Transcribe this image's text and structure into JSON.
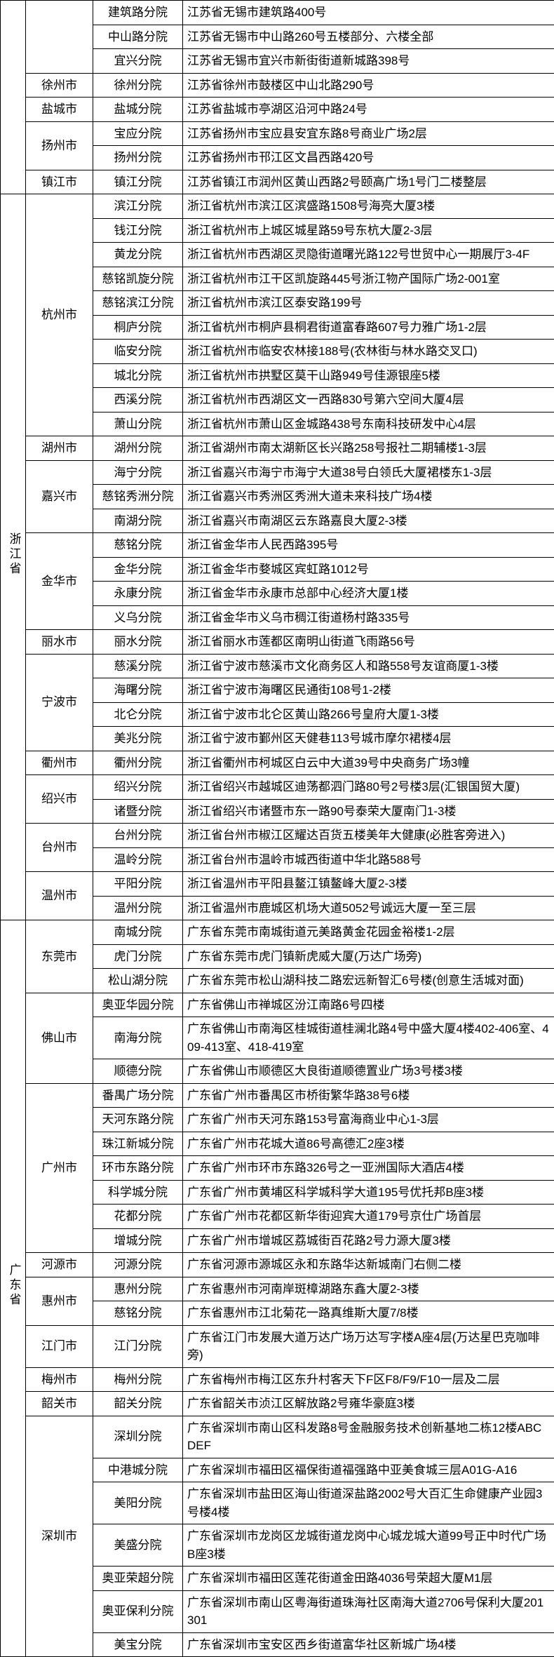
{
  "rows": [
    {
      "prov": "",
      "provSpan": 0,
      "city": "",
      "citySpan": 0,
      "branch": "建筑路分院",
      "addr": "江苏省无锡市建筑路400号"
    },
    {
      "prov": "",
      "provSpan": 0,
      "city": "",
      "citySpan": 0,
      "branch": "中山路分院",
      "addr": "江苏省无锡市中山路260号五楼部分、六楼全部"
    },
    {
      "prov": "",
      "provSpan": 0,
      "city": "",
      "citySpan": 0,
      "branch": "宜兴分院",
      "addr": "江苏省无锡市宜兴市新街街道新城路398号"
    },
    {
      "prov": "",
      "provSpan": 0,
      "city": "徐州市",
      "citySpan": 1,
      "branch": "徐州分院",
      "addr": "江苏省徐州市鼓楼区中山北路290号"
    },
    {
      "prov": "",
      "provSpan": 0,
      "city": "盐城市",
      "citySpan": 1,
      "branch": "盐城分院",
      "addr": "江苏省盐城市亭湖区沿河中路24号"
    },
    {
      "prov": "",
      "provSpan": 0,
      "city": "扬州市",
      "citySpan": 2,
      "branch": "宝应分院",
      "addr": "江苏省扬州市宝应县安宜东路8号商业广场2层"
    },
    {
      "prov": "",
      "provSpan": 0,
      "city": "",
      "citySpan": 0,
      "branch": "扬州分院",
      "addr": "江苏省扬州市邗江区文昌西路420号"
    },
    {
      "prov": "",
      "provSpan": 0,
      "city": "镇江市",
      "citySpan": 1,
      "branch": "镇江分院",
      "addr": "江苏省镇江市润州区黄山西路2号颐高广场1号门二楼整层"
    },
    {
      "prov": "浙江省",
      "provSpan": 30,
      "city": "杭州市",
      "citySpan": 10,
      "branch": "滨江分院",
      "addr": "浙江省杭州市滨江区滨盛路1508号海亮大厦3楼"
    },
    {
      "prov": "",
      "provSpan": 0,
      "city": "",
      "citySpan": 0,
      "branch": "钱江分院",
      "addr": "浙江省杭州市上城区城星路59号东杭大厦2-3层"
    },
    {
      "prov": "",
      "provSpan": 0,
      "city": "",
      "citySpan": 0,
      "branch": "黄龙分院",
      "addr": "浙江省杭州市西湖区灵隐街道曙光路122号世贸中心一期展厅3-4F"
    },
    {
      "prov": "",
      "provSpan": 0,
      "city": "",
      "citySpan": 0,
      "branch": "慈铭凯旋分院",
      "addr": "浙江省杭州市江干区凯旋路445号浙江物产国际广场2-001室"
    },
    {
      "prov": "",
      "provSpan": 0,
      "city": "",
      "citySpan": 0,
      "branch": "慈铭滨江分院",
      "addr": "浙江省杭州市滨江区泰安路199号"
    },
    {
      "prov": "",
      "provSpan": 0,
      "city": "",
      "citySpan": 0,
      "branch": "桐庐分院",
      "addr": "浙江省杭州市桐庐县桐君街道富春路607号力雅广场1-2层"
    },
    {
      "prov": "",
      "provSpan": 0,
      "city": "",
      "citySpan": 0,
      "branch": "临安分院",
      "addr": "浙江省杭州市临安农林接188号(农林街与林水路交叉口)"
    },
    {
      "prov": "",
      "provSpan": 0,
      "city": "",
      "citySpan": 0,
      "branch": "城北分院",
      "addr": "浙江省杭州市拱墅区莫干山路949号佳源银座5楼"
    },
    {
      "prov": "",
      "provSpan": 0,
      "city": "",
      "citySpan": 0,
      "branch": "西溪分院",
      "addr": "浙江省杭州市西湖区文一西路830号第六空间大厦4层"
    },
    {
      "prov": "",
      "provSpan": 0,
      "city": "",
      "citySpan": 0,
      "branch": "萧山分院",
      "addr": "浙江省杭州市萧山区金城路438号东南科技研发中心4层"
    },
    {
      "prov": "",
      "provSpan": 0,
      "city": "湖州市",
      "citySpan": 1,
      "branch": "湖州分院",
      "addr": "浙江省湖州市南太湖新区长兴路258号报社二期辅楼1-3层"
    },
    {
      "prov": "",
      "provSpan": 0,
      "city": "嘉兴市",
      "citySpan": 3,
      "branch": "海宁分院",
      "addr": "浙江省嘉兴市海宁市海宁大道38号白领氏大厦裙楼东1-3层"
    },
    {
      "prov": "",
      "provSpan": 0,
      "city": "",
      "citySpan": 0,
      "branch": "慈铭秀洲分院",
      "addr": "浙江省嘉兴市秀洲区秀洲大道未来科技广场4楼"
    },
    {
      "prov": "",
      "provSpan": 0,
      "city": "",
      "citySpan": 0,
      "branch": "南湖分院",
      "addr": "浙江省嘉兴市南湖区云东路嘉良大厦2-3楼"
    },
    {
      "prov": "",
      "provSpan": 0,
      "city": "金华市",
      "citySpan": 4,
      "branch": "慈铭分院",
      "addr": "浙江省金华市人民西路395号"
    },
    {
      "prov": "",
      "provSpan": 0,
      "city": "",
      "citySpan": 0,
      "branch": "金华分院",
      "addr": "浙江省金华市婺城区宾虹路1012号"
    },
    {
      "prov": "",
      "provSpan": 0,
      "city": "",
      "citySpan": 0,
      "branch": "永康分院",
      "addr": "浙江省金华市永康市总部中心经济大厦1楼"
    },
    {
      "prov": "",
      "provSpan": 0,
      "city": "",
      "citySpan": 0,
      "branch": "义乌分院",
      "addr": "浙江省金华市义乌市稠江街道杨村路335号"
    },
    {
      "prov": "",
      "provSpan": 0,
      "city": "丽水市",
      "citySpan": 1,
      "branch": "丽水分院",
      "addr": "浙江省丽水市莲都区南明山街道飞雨路56号"
    },
    {
      "prov": "",
      "provSpan": 0,
      "city": "宁波市",
      "citySpan": 4,
      "branch": "慈溪分院",
      "addr": "浙江省宁波市慈溪市文化商务区人和路558号友谊商厦1-3楼"
    },
    {
      "prov": "",
      "provSpan": 0,
      "city": "",
      "citySpan": 0,
      "branch": "海曙分院",
      "addr": "浙江省宁波市海曙区民通街108号1-2楼"
    },
    {
      "prov": "",
      "provSpan": 0,
      "city": "",
      "citySpan": 0,
      "branch": "北仑分院",
      "addr": "浙江省宁波市北仑区黄山路266号皇府大厦1-3楼"
    },
    {
      "prov": "",
      "provSpan": 0,
      "city": "",
      "citySpan": 0,
      "branch": "美兆分院",
      "addr": "浙江省宁波市鄞州区天健巷113号城市摩尔裙楼4层"
    },
    {
      "prov": "",
      "provSpan": 0,
      "city": "衢州市",
      "citySpan": 1,
      "branch": "衢州分院",
      "addr": "浙江省衢州市柯城区白云中大道39号中央商务广场3幢"
    },
    {
      "prov": "",
      "provSpan": 0,
      "city": "绍兴市",
      "citySpan": 2,
      "branch": "绍兴分院",
      "addr": "浙江省绍兴市越城区迪荡都泗门路80号2号楼3层(汇银国贸大厦)"
    },
    {
      "prov": "",
      "provSpan": 0,
      "city": "",
      "citySpan": 0,
      "branch": "诸暨分院",
      "addr": "浙江省绍兴市诸暨市东一路90号泰荣大厦南门1-3楼"
    },
    {
      "prov": "",
      "provSpan": 0,
      "city": "台州市",
      "citySpan": 2,
      "branch": "台州分院",
      "addr": "浙江省台州市椒江区耀达百货五楼美年大健康(必胜客旁进入)"
    },
    {
      "prov": "",
      "provSpan": 0,
      "city": "",
      "citySpan": 0,
      "branch": "温岭分院",
      "addr": "浙江省台州市温岭市城西街道中华北路588号"
    },
    {
      "prov": "",
      "provSpan": 0,
      "city": "温州市",
      "citySpan": 2,
      "branch": "平阳分院",
      "addr": "浙江省温州市平阳县鳌江镇鳌峰大厦2-3楼"
    },
    {
      "prov": "",
      "provSpan": 0,
      "city": "",
      "citySpan": 0,
      "branch": "温州分院",
      "addr": "浙江省温州市鹿城区机场大道5052号诚远大厦一至三层"
    },
    {
      "prov": "广东省",
      "provSpan": 32,
      "city": "东莞市",
      "citySpan": 3,
      "branch": "南城分院",
      "addr": "广东省东莞市南城街道元美路黄金花园金裕楼1-2层"
    },
    {
      "prov": "",
      "provSpan": 0,
      "city": "",
      "citySpan": 0,
      "branch": "虎门分院",
      "addr": "广东省东莞市虎门镇新虎威大厦(万达广场旁)"
    },
    {
      "prov": "",
      "provSpan": 0,
      "city": "",
      "citySpan": 0,
      "branch": "松山湖分院",
      "addr": "广东省东莞市松山湖科技二路宏远新智汇6号楼(创意生活城对面)"
    },
    {
      "prov": "",
      "provSpan": 0,
      "city": "佛山市",
      "citySpan": 3,
      "branch": "奥亚华园分院",
      "addr": "广东省佛山市禅城区汾江南路6号四楼"
    },
    {
      "prov": "",
      "provSpan": 0,
      "city": "",
      "citySpan": 0,
      "branch": "南海分院",
      "addr": "广东省佛山市南海区桂城街道桂澜北路4号中盛大厦4楼402-406室、409-413室、418-419室"
    },
    {
      "prov": "",
      "provSpan": 0,
      "city": "",
      "citySpan": 0,
      "branch": "顺德分院",
      "addr": "广东省佛山市顺德区大良街道顺德置业广场3号楼3楼"
    },
    {
      "prov": "",
      "provSpan": 0,
      "city": "广州市",
      "citySpan": 7,
      "branch": "番禺广场分院",
      "addr": "广东省广州市番禺区市桥街繁华路38号6楼"
    },
    {
      "prov": "",
      "provSpan": 0,
      "city": "",
      "citySpan": 0,
      "branch": "天河东路分院",
      "addr": "广东省广州市天河东路153号富海商业中心1-3层"
    },
    {
      "prov": "",
      "provSpan": 0,
      "city": "",
      "citySpan": 0,
      "branch": "珠江新城分院",
      "addr": "广东省广州市花城大道86号高德汇2座3楼"
    },
    {
      "prov": "",
      "provSpan": 0,
      "city": "",
      "citySpan": 0,
      "branch": "环市东路分院",
      "addr": "广东省广州市环市东路326号之一亚洲国际大酒店4楼"
    },
    {
      "prov": "",
      "provSpan": 0,
      "city": "",
      "citySpan": 0,
      "branch": "科学城分院",
      "addr": "广东省广州市黄埔区科学城科学大道195号优托邦B座3楼"
    },
    {
      "prov": "",
      "provSpan": 0,
      "city": "",
      "citySpan": 0,
      "branch": "花都分院",
      "addr": "广东省广州市花都区新华街迎宾大道179号京仕广场首层"
    },
    {
      "prov": "",
      "provSpan": 0,
      "city": "",
      "citySpan": 0,
      "branch": "增城分院",
      "addr": "广东省广州市增城区荔城街百花路2号力源大厦3楼"
    },
    {
      "prov": "",
      "provSpan": 0,
      "city": "河源市",
      "citySpan": 1,
      "branch": "河源分院",
      "addr": "广东省河源市源城区永和东路华达新城南门右侧二楼"
    },
    {
      "prov": "",
      "provSpan": 0,
      "city": "惠州市",
      "citySpan": 2,
      "branch": "惠州分院",
      "addr": "广东省惠州市河南岸斑樟湖路东鑫大厦2-3楼"
    },
    {
      "prov": "",
      "provSpan": 0,
      "city": "",
      "citySpan": 0,
      "branch": "慈铭分院",
      "addr": "广东省惠州市江北菊花一路真维斯大厦7/8楼"
    },
    {
      "prov": "",
      "provSpan": 0,
      "city": "江门市",
      "citySpan": 1,
      "branch": "江门分院",
      "addr": "广东省江门市发展大道万达广场万达写字楼A座4层(万达星巴克咖啡旁)"
    },
    {
      "prov": "",
      "provSpan": 0,
      "city": "梅州市",
      "citySpan": 1,
      "branch": "梅州分院",
      "addr": "广东省梅州市梅江区东升村客天下F区F8/F9/F10一层及二层"
    },
    {
      "prov": "",
      "provSpan": 0,
      "city": "韶关市",
      "citySpan": 1,
      "branch": "韶关分院",
      "addr": "广东省韶关市浈江区解放路2号雍华豪庭3楼"
    },
    {
      "prov": "",
      "provSpan": 0,
      "city": "深圳市",
      "citySpan": 13,
      "branch": "深圳分院",
      "addr": "广东省深圳市南山区科发路8号金融服务技术创新基地二栋12楼ABCDEF"
    },
    {
      "prov": "",
      "provSpan": 0,
      "city": "",
      "citySpan": 0,
      "branch": "中港城分院",
      "addr": "广东省深圳市福田区福保街道福强路中亚美食城三层A01G-A16"
    },
    {
      "prov": "",
      "provSpan": 0,
      "city": "",
      "citySpan": 0,
      "branch": "美阳分院",
      "addr": "广东省深圳市盐田区海山街道深盐路2002号大百汇生命健康产业园3号楼4楼"
    },
    {
      "prov": "",
      "provSpan": 0,
      "city": "",
      "citySpan": 0,
      "branch": "美盛分院",
      "addr": "广东省深圳市龙岗区龙城街道龙岗中心城龙城大道99号正中时代广场B座3楼"
    },
    {
      "prov": "",
      "provSpan": 0,
      "city": "",
      "citySpan": 0,
      "branch": "奥亚荣超分院",
      "addr": "广东省深圳市福田区莲花街道金田路4036号荣超大厦M1层"
    },
    {
      "prov": "",
      "provSpan": 0,
      "city": "",
      "citySpan": 0,
      "branch": "奥亚保利分院",
      "addr": "广东省深圳市南山区粤海街道珠海社区南海大道2706号保利大厦201301"
    },
    {
      "prov": "",
      "provSpan": 0,
      "city": "",
      "citySpan": 0,
      "branch": "美宝分院",
      "addr": "广东省深圳市宝安区西乡街道富华社区新城广场4楼"
    }
  ]
}
